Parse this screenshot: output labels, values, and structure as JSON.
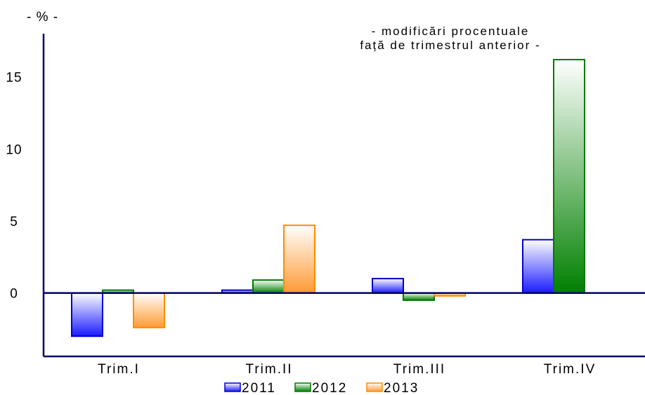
{
  "chart_data": {
    "type": "bar",
    "unit_label": "- % -",
    "annotation": [
      "- modificări procentuale",
      "față de trimestrul anterior -"
    ],
    "categories": [
      "Trim.I",
      "Trim.II",
      "Trim.III",
      "Trim.IV"
    ],
    "series": [
      {
        "name": "2011",
        "values": [
          -3.0,
          0.2,
          1.0,
          3.7
        ],
        "color": "#0000cc"
      },
      {
        "name": "2012",
        "values": [
          0.2,
          0.9,
          -0.5,
          16.2
        ],
        "color": "#007a00"
      },
      {
        "name": "2013",
        "values": [
          -2.4,
          4.7,
          -0.2,
          null
        ],
        "color": "#ff8c00"
      }
    ],
    "yticks": [
      "0",
      "5",
      "10",
      "15"
    ],
    "ylim": [
      -4.4,
      18.0
    ],
    "grid": false,
    "legend": "bottom"
  }
}
